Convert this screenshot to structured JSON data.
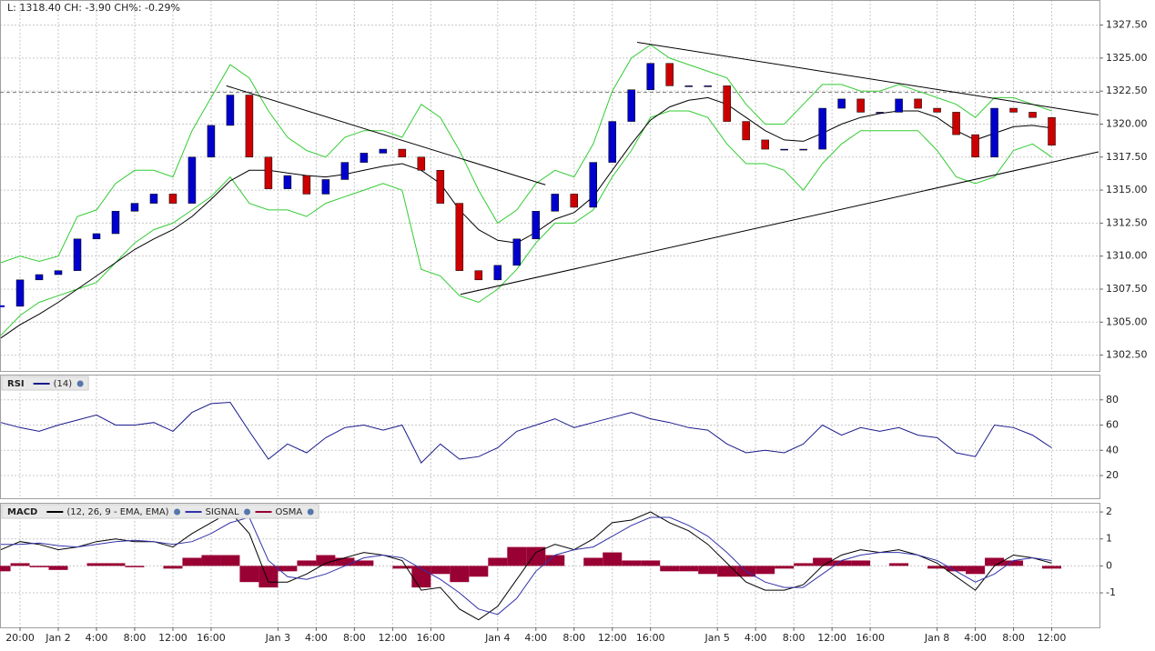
{
  "chart_data": [
    {
      "type": "candlestick",
      "title": "L: 1318.40 CH: -3.90 CH%: -0.29%",
      "x": [
        -2,
        0,
        2,
        4,
        6,
        8,
        10,
        12,
        14,
        16,
        18,
        20,
        22,
        24,
        26,
        28,
        30,
        32,
        34,
        36,
        38,
        40,
        42,
        44,
        46,
        48,
        50,
        52,
        54,
        56,
        58,
        60,
        62,
        64,
        66,
        68,
        70,
        72,
        74,
        76,
        78,
        80,
        82,
        84,
        86,
        88,
        90,
        92,
        94,
        96,
        98,
        100,
        102,
        104,
        106,
        108
      ],
      "xlim": [
        -2.1,
        113
      ],
      "ylim": [
        1301.3,
        1329.4
      ],
      "yticks": [
        {
          "value": 1302.5,
          "label": "1302.50"
        },
        {
          "value": 1305,
          "label": "1305.00"
        },
        {
          "value": 1307.5,
          "label": "1307.50"
        },
        {
          "value": 1310,
          "label": "1310.00"
        },
        {
          "value": 1312.5,
          "label": "1312.50"
        },
        {
          "value": 1315,
          "label": "1315.00"
        },
        {
          "value": 1317.5,
          "label": "1317.50"
        },
        {
          "value": 1320,
          "label": "1320.00"
        },
        {
          "value": 1322.5,
          "label": "1322.50"
        },
        {
          "value": 1325,
          "label": "1325.00"
        },
        {
          "value": 1327.5,
          "label": "1327.50"
        }
      ],
      "grid": true,
      "up_color": "#0000cc",
      "down_color": "#cc0000",
      "values": [
        1306.2,
        1308.2,
        1308.6,
        1308.9,
        1311.3,
        1311.7,
        1313.4,
        1314.0,
        1314.7,
        1314.0,
        1317.5,
        1319.9,
        1322.2,
        1317.5,
        1315.1,
        1316.1,
        1314.7,
        1315.8,
        1317.1,
        1317.8,
        1318.1,
        1317.5,
        1316.5,
        1314.0,
        1308.9,
        1308.2,
        1309.3,
        1311.3,
        1313.4,
        1314.7,
        1313.7,
        1317.1,
        1320.2,
        1322.6,
        1324.6,
        1322.9,
        1322.9,
        1322.9,
        1320.2,
        1318.8,
        1318.1,
        1318.1,
        1318.1,
        1321.2,
        1321.9,
        1320.9,
        1320.9,
        1321.9,
        1321.2,
        1320.9,
        1319.2,
        1317.5,
        1321.2,
        1320.9,
        1320.5,
        1318.4
      ],
      "series": [
        {
          "color": "#33cc33",
          "values": [
            1309.5,
            1310.0,
            1309.6,
            1310.0,
            1313.0,
            1313.5,
            1315.5,
            1316.5,
            1316.5,
            1316.0,
            1319.5,
            1322.0,
            1324.5,
            1323.5,
            1321.0,
            1319.0,
            1318.0,
            1317.5,
            1319.0,
            1319.5,
            1319.5,
            1319.0,
            1321.5,
            1320.5,
            1318.0,
            1315.0,
            1312.5,
            1313.5,
            1315.5,
            1316.5,
            1316.0,
            1318.5,
            1322.5,
            1325.0,
            1326.0,
            1325.0,
            1324.5,
            1324.0,
            1323.5,
            1321.5,
            1320.0,
            1320.0,
            1321.5,
            1323.0,
            1323.0,
            1322.5,
            1322.5,
            1323.0,
            1322.5,
            1322.0,
            1321.5,
            1320.5,
            1322.0,
            1322.0,
            1321.5,
            1321.0
          ]
        },
        {
          "color": "#33cc33",
          "values": [
            1304.0,
            1305.5,
            1306.5,
            1307.0,
            1307.5,
            1308.0,
            1309.5,
            1311.0,
            1312.0,
            1312.5,
            1313.5,
            1314.5,
            1316.0,
            1314.0,
            1313.5,
            1313.5,
            1313.0,
            1314.0,
            1314.5,
            1315.0,
            1315.5,
            1315.0,
            1309.0,
            1308.5,
            1307.0,
            1306.5,
            1307.5,
            1309.0,
            1311.0,
            1312.5,
            1312.5,
            1313.5,
            1316.0,
            1318.0,
            1320.5,
            1321.0,
            1321.0,
            1320.5,
            1318.5,
            1317.0,
            1317.0,
            1316.5,
            1315.0,
            1317.0,
            1318.5,
            1319.5,
            1319.5,
            1319.5,
            1319.5,
            1318.0,
            1316.0,
            1315.5,
            1316.0,
            1318.0,
            1318.5,
            1317.5
          ]
        },
        {
          "color": "#000000",
          "values": [
            1303.8,
            1304.8,
            1305.6,
            1306.5,
            1307.5,
            1308.5,
            1309.5,
            1310.5,
            1311.3,
            1312.0,
            1313.0,
            1314.3,
            1315.7,
            1316.5,
            1316.5,
            1316.3,
            1316.1,
            1316.0,
            1316.2,
            1316.5,
            1316.8,
            1317.0,
            1316.5,
            1315.5,
            1313.5,
            1312.0,
            1311.2,
            1311.0,
            1311.8,
            1312.8,
            1313.3,
            1314.5,
            1316.5,
            1318.5,
            1320.3,
            1321.3,
            1321.8,
            1322.0,
            1321.5,
            1320.5,
            1319.5,
            1318.8,
            1318.7,
            1319.3,
            1320.0,
            1320.5,
            1320.8,
            1321.0,
            1321.0,
            1320.5,
            1319.5,
            1318.8,
            1319.3,
            1319.8,
            1319.9,
            1319.7
          ]
        }
      ],
      "trendlines": [
        {
          "x": [
            21.6,
            55.0
          ],
          "values": [
            1322.9,
            1315.4
          ]
        },
        {
          "x": [
            46.1,
            112.9
          ],
          "values": [
            1307.1,
            1317.9
          ]
        },
        {
          "x": [
            64.6,
            112.9
          ],
          "values": [
            1326.2,
            1320.7
          ]
        }
      ],
      "reference_line": 1322.4
    },
    {
      "type": "line",
      "title": "RSI",
      "x": [
        -2,
        0,
        2,
        4,
        6,
        8,
        10,
        12,
        14,
        16,
        18,
        20,
        22,
        24,
        26,
        28,
        30,
        32,
        34,
        36,
        38,
        40,
        42,
        44,
        46,
        48,
        50,
        52,
        54,
        56,
        58,
        60,
        62,
        64,
        66,
        68,
        70,
        72,
        74,
        76,
        78,
        80,
        82,
        84,
        86,
        88,
        90,
        92,
        94,
        96,
        98,
        100,
        102,
        104,
        106,
        108
      ],
      "xlim": [
        -2.1,
        113
      ],
      "ylim": [
        2,
        100
      ],
      "yticks": [
        20,
        40,
        60,
        80
      ],
      "grid": true,
      "series": [
        {
          "name": "(14)",
          "color": "#1a1a8c",
          "values": [
            62,
            58,
            55,
            60,
            64,
            68,
            60,
            60,
            62,
            55,
            70,
            77,
            78,
            55,
            33,
            45,
            38,
            50,
            58,
            60,
            56,
            60,
            30,
            45,
            33,
            35,
            42,
            55,
            60,
            65,
            58,
            62,
            66,
            70,
            65,
            62,
            58,
            56,
            45,
            38,
            40,
            38,
            45,
            60,
            52,
            58,
            55,
            58,
            52,
            50,
            38,
            35,
            60,
            58,
            52,
            42
          ]
        }
      ]
    },
    {
      "type": "macd",
      "title": "MACD",
      "x": [
        -2,
        0,
        2,
        4,
        6,
        8,
        10,
        12,
        14,
        16,
        18,
        20,
        22,
        24,
        26,
        28,
        30,
        32,
        34,
        36,
        38,
        40,
        42,
        44,
        46,
        48,
        50,
        52,
        54,
        56,
        58,
        60,
        62,
        64,
        66,
        68,
        70,
        72,
        74,
        76,
        78,
        80,
        82,
        84,
        86,
        88,
        90,
        92,
        94,
        96,
        98,
        100,
        102,
        104,
        106,
        108
      ],
      "xlim": [
        -2.1,
        113
      ],
      "ylim": [
        -2.28,
        2.34
      ],
      "yticks": [
        -1,
        0,
        1,
        2
      ],
      "grid": true,
      "xticks": [
        {
          "value": 0,
          "label": "20:00"
        },
        {
          "value": 4,
          "label": "Jan 2"
        },
        {
          "value": 8,
          "label": "4:00"
        },
        {
          "value": 12,
          "label": "8:00"
        },
        {
          "value": 16,
          "label": "12:00"
        },
        {
          "value": 20,
          "label": "16:00"
        },
        {
          "value": 27,
          "label": "Jan 3"
        },
        {
          "value": 31,
          "label": "4:00"
        },
        {
          "value": 35,
          "label": "8:00"
        },
        {
          "value": 39,
          "label": "12:00"
        },
        {
          "value": 43,
          "label": "16:00"
        },
        {
          "value": 50,
          "label": "Jan 4"
        },
        {
          "value": 54,
          "label": "4:00"
        },
        {
          "value": 58,
          "label": "8:00"
        },
        {
          "value": 62,
          "label": "12:00"
        },
        {
          "value": 66,
          "label": "16:00"
        },
        {
          "value": 73,
          "label": "Jan 5"
        },
        {
          "value": 77,
          "label": "4:00"
        },
        {
          "value": 81,
          "label": "8:00"
        },
        {
          "value": 85,
          "label": "12:00"
        },
        {
          "value": 89,
          "label": "16:00"
        },
        {
          "value": 96,
          "label": "Jan 8"
        },
        {
          "value": 100,
          "label": "4:00"
        },
        {
          "value": 104,
          "label": "8:00"
        },
        {
          "value": 108,
          "label": "12:00"
        }
      ],
      "series": [
        {
          "name": "(12, 26, 9 - EMA, EMA)",
          "color": "#000000",
          "values": [
            0.6,
            0.9,
            0.8,
            0.6,
            0.7,
            0.9,
            1.0,
            0.9,
            0.9,
            0.7,
            1.2,
            1.6,
            2.0,
            1.2,
            -0.6,
            -0.6,
            -0.3,
            0.1,
            0.3,
            0.5,
            0.4,
            0.2,
            -0.9,
            -0.8,
            -1.6,
            -2.0,
            -1.5,
            -0.5,
            0.5,
            0.8,
            0.6,
            1.0,
            1.6,
            1.7,
            2.0,
            1.6,
            1.3,
            0.8,
            0.1,
            -0.6,
            -0.9,
            -0.9,
            -0.7,
            0.0,
            0.4,
            0.6,
            0.5,
            0.6,
            0.4,
            0.1,
            -0.4,
            -0.9,
            0.0,
            0.4,
            0.3,
            0.1
          ]
        },
        {
          "name": "SIGNAL",
          "color": "#3333aa",
          "values": [
            0.8,
            0.8,
            0.85,
            0.75,
            0.7,
            0.8,
            0.9,
            0.95,
            0.9,
            0.8,
            0.9,
            1.2,
            1.6,
            1.8,
            0.2,
            -0.4,
            -0.5,
            -0.3,
            0.0,
            0.3,
            0.4,
            0.3,
            -0.1,
            -0.5,
            -1.0,
            -1.6,
            -1.8,
            -1.2,
            -0.2,
            0.4,
            0.6,
            0.7,
            1.1,
            1.5,
            1.8,
            1.8,
            1.5,
            1.1,
            0.5,
            -0.2,
            -0.6,
            -0.8,
            -0.8,
            -0.3,
            0.2,
            0.4,
            0.5,
            0.5,
            0.4,
            0.2,
            -0.2,
            -0.6,
            -0.3,
            0.2,
            0.3,
            0.2
          ]
        },
        {
          "name": "OSMA",
          "color": "#990033",
          "bars": true,
          "values": [
            -0.2,
            0.1,
            -0.05,
            -0.15,
            0,
            0.1,
            0.1,
            -0.05,
            0,
            -0.1,
            0.3,
            0.4,
            0.4,
            -0.6,
            -0.8,
            -0.2,
            0.2,
            0.4,
            0.3,
            0.2,
            0,
            -0.1,
            -0.8,
            -0.3,
            -0.6,
            -0.4,
            0.3,
            0.7,
            0.7,
            0.4,
            0,
            0.3,
            0.5,
            0.2,
            0.2,
            -0.2,
            -0.2,
            -0.3,
            -0.4,
            -0.4,
            -0.3,
            -0.1,
            0.1,
            0.3,
            0.2,
            0.2,
            0,
            0.1,
            0,
            -0.1,
            -0.2,
            -0.3,
            0.3,
            0.2,
            0,
            -0.1
          ]
        }
      ]
    }
  ]
}
